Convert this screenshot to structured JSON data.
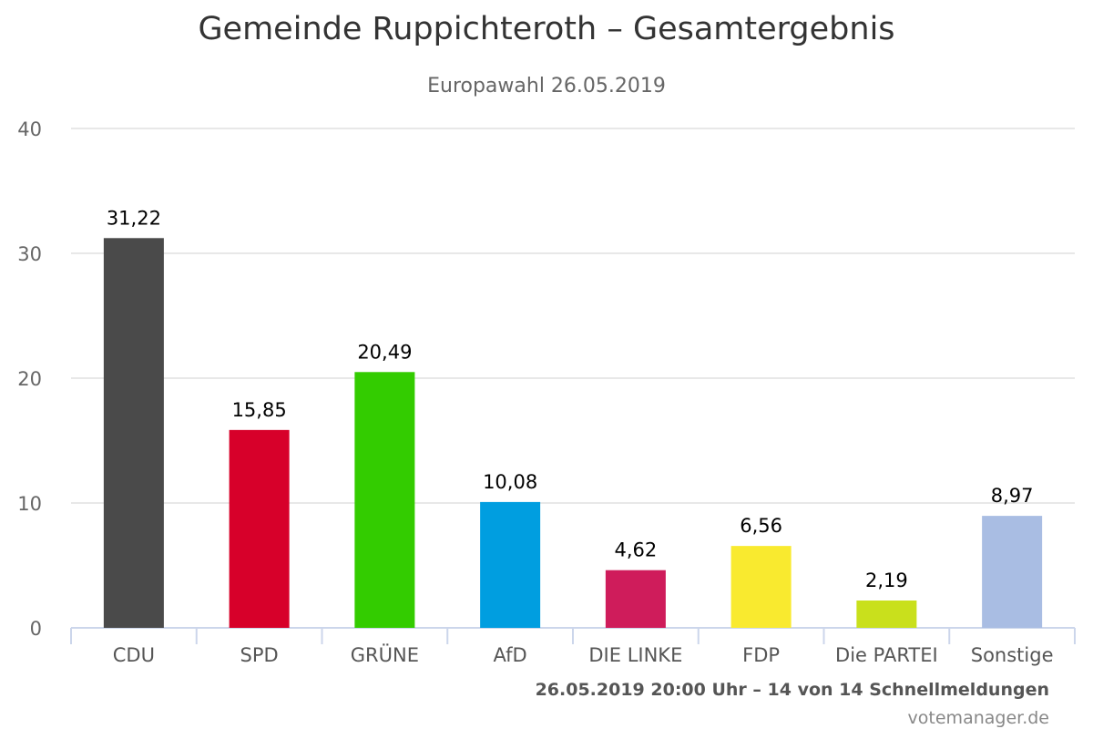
{
  "chart": {
    "title": "Gemeinde Ruppichteroth – Gesamtergebnis",
    "subtitle": "Europawahl 26.05.2019",
    "caption": "26.05.2019 20:00 Uhr – 14 von 14 Schnellmeldungen",
    "credit": "votemanager.de"
  },
  "chart_data": {
    "type": "bar",
    "title": "Gemeinde Ruppichteroth – Gesamtergebnis",
    "subtitle": "Europawahl 26.05.2019",
    "xlabel": "",
    "ylabel": "",
    "categories": [
      "CDU",
      "SPD",
      "GRÜNE",
      "AfD",
      "DIE LINKE",
      "FDP",
      "Die PARTEI",
      "Sonstige"
    ],
    "values": [
      31.22,
      15.85,
      20.49,
      10.08,
      4.62,
      6.56,
      2.19,
      8.97
    ],
    "value_labels": [
      "31,22",
      "15,85",
      "20,49",
      "10,08",
      "4,62",
      "6,56",
      "2,19",
      "8,97"
    ],
    "colors": [
      "#4a4a4a",
      "#d7002a",
      "#33cc00",
      "#009ee0",
      "#cf1c5b",
      "#f9ea2f",
      "#c9e01c",
      "#a9bde3"
    ],
    "ylim": [
      0,
      40
    ],
    "yticks": [
      0,
      10,
      20,
      30,
      40
    ],
    "grid": true,
    "legend": "none"
  }
}
